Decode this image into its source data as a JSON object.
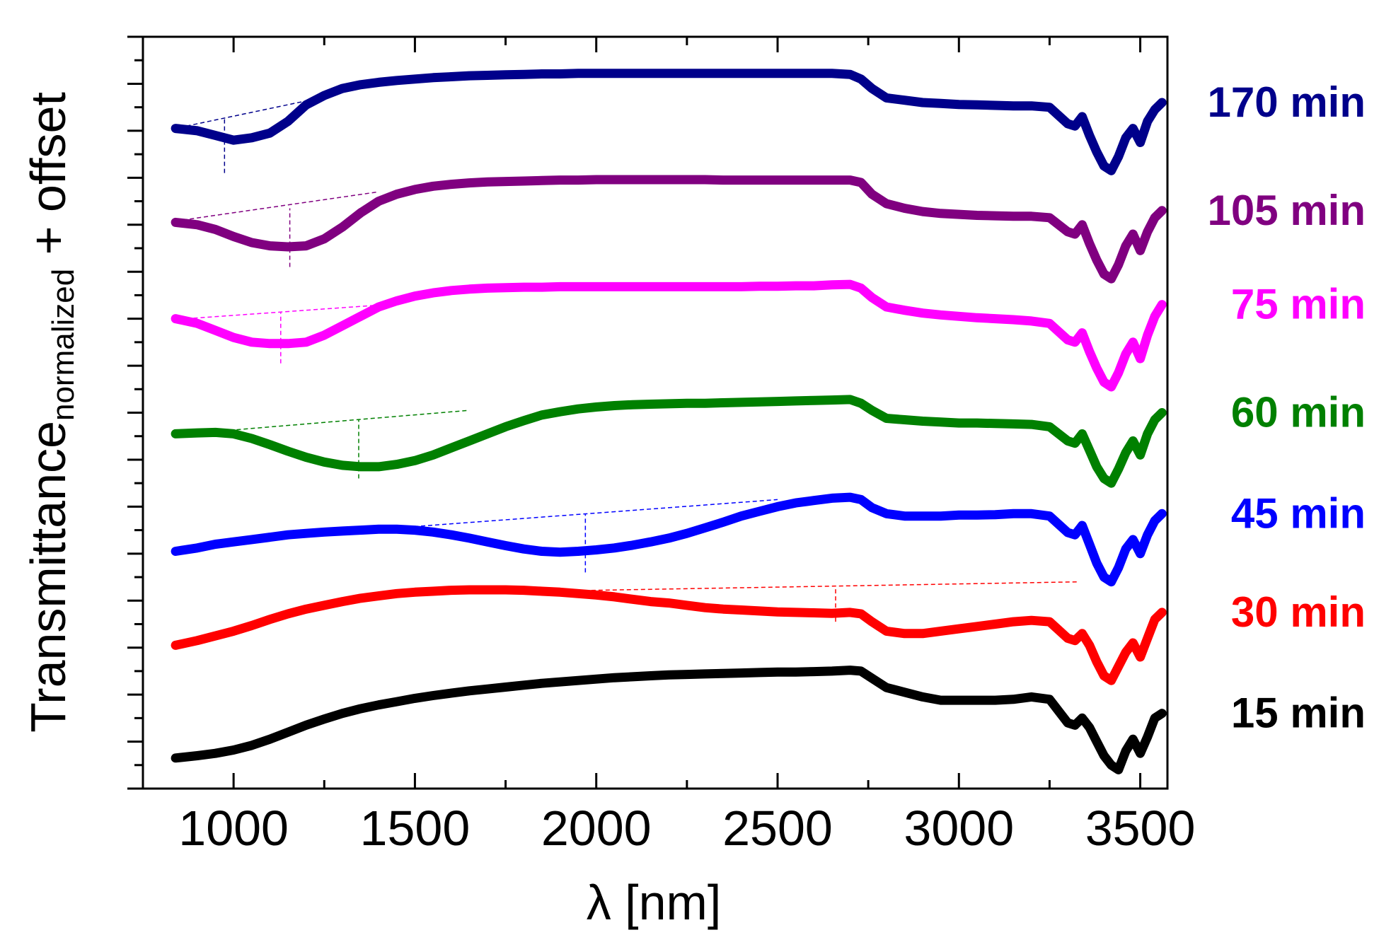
{
  "chart_data": {
    "type": "line",
    "title": "",
    "xlabel": "λ [nm]",
    "ylabel_main": "Transmittance",
    "ylabel_sub": "normalized",
    "ylabel_suffix": " + offset",
    "xlim": [
      750,
      3575
    ],
    "ylim": [
      0,
      16
    ],
    "xticks": [
      1000,
      1500,
      2000,
      2500,
      3000,
      3500
    ],
    "xtick_labels": [
      "1000",
      "1500",
      "2000",
      "2500",
      "3000",
      "3500"
    ],
    "grid": false,
    "x": [
      840,
      900,
      950,
      1000,
      1050,
      1100,
      1150,
      1200,
      1250,
      1300,
      1350,
      1400,
      1450,
      1500,
      1550,
      1600,
      1650,
      1700,
      1750,
      1800,
      1850,
      1900,
      1950,
      2000,
      2050,
      2100,
      2150,
      2200,
      2250,
      2300,
      2350,
      2400,
      2450,
      2500,
      2550,
      2600,
      2650,
      2700,
      2730,
      2760,
      2800,
      2850,
      2900,
      2950,
      3000,
      3050,
      3100,
      3150,
      3200,
      3250,
      3300,
      3320,
      3340,
      3360,
      3380,
      3400,
      3420,
      3440,
      3460,
      3480,
      3500,
      3520,
      3540,
      3560
    ],
    "series": [
      {
        "name": "15 min",
        "color": "#000000",
        "values": [
          0.65,
          0.7,
          0.75,
          0.82,
          0.92,
          1.05,
          1.2,
          1.35,
          1.48,
          1.6,
          1.7,
          1.78,
          1.85,
          1.92,
          1.98,
          2.03,
          2.08,
          2.12,
          2.16,
          2.2,
          2.24,
          2.27,
          2.3,
          2.33,
          2.36,
          2.38,
          2.4,
          2.42,
          2.43,
          2.44,
          2.45,
          2.46,
          2.47,
          2.48,
          2.48,
          2.49,
          2.5,
          2.52,
          2.5,
          2.35,
          2.15,
          2.05,
          1.95,
          1.88,
          1.88,
          1.88,
          1.88,
          1.9,
          1.95,
          1.9,
          1.4,
          1.35,
          1.5,
          1.3,
          1.0,
          0.7,
          0.5,
          0.4,
          0.8,
          1.05,
          0.75,
          1.1,
          1.5,
          1.6
        ]
      },
      {
        "name": "30 min",
        "color": "#ff0000",
        "values": [
          3.05,
          3.15,
          3.25,
          3.35,
          3.47,
          3.6,
          3.72,
          3.82,
          3.9,
          3.98,
          4.05,
          4.1,
          4.15,
          4.18,
          4.2,
          4.22,
          4.23,
          4.23,
          4.23,
          4.22,
          4.2,
          4.18,
          4.15,
          4.12,
          4.08,
          4.03,
          3.98,
          3.95,
          3.9,
          3.85,
          3.82,
          3.8,
          3.78,
          3.76,
          3.75,
          3.74,
          3.73,
          3.75,
          3.72,
          3.55,
          3.35,
          3.3,
          3.3,
          3.35,
          3.4,
          3.45,
          3.5,
          3.55,
          3.58,
          3.55,
          3.2,
          3.15,
          3.3,
          3.05,
          2.7,
          2.4,
          2.3,
          2.6,
          2.9,
          3.1,
          2.8,
          3.2,
          3.6,
          3.75
        ]
      },
      {
        "name": "45 min",
        "color": "#0000ff",
        "values": [
          5.05,
          5.12,
          5.2,
          5.25,
          5.3,
          5.35,
          5.4,
          5.43,
          5.46,
          5.48,
          5.5,
          5.52,
          5.52,
          5.5,
          5.46,
          5.4,
          5.33,
          5.25,
          5.17,
          5.1,
          5.05,
          5.03,
          5.05,
          5.08,
          5.12,
          5.18,
          5.25,
          5.33,
          5.43,
          5.55,
          5.67,
          5.8,
          5.9,
          6.0,
          6.08,
          6.13,
          6.18,
          6.2,
          6.15,
          5.98,
          5.85,
          5.8,
          5.8,
          5.8,
          5.82,
          5.82,
          5.83,
          5.85,
          5.85,
          5.8,
          5.45,
          5.4,
          5.6,
          5.2,
          4.8,
          4.5,
          4.4,
          4.7,
          5.1,
          5.3,
          5.0,
          5.4,
          5.7,
          5.85
        ]
      },
      {
        "name": "60 min",
        "color": "#008000",
        "values": [
          7.55,
          7.57,
          7.58,
          7.55,
          7.45,
          7.32,
          7.18,
          7.05,
          6.95,
          6.88,
          6.85,
          6.85,
          6.9,
          6.98,
          7.1,
          7.25,
          7.4,
          7.55,
          7.7,
          7.83,
          7.95,
          8.02,
          8.08,
          8.12,
          8.15,
          8.17,
          8.18,
          8.19,
          8.2,
          8.2,
          8.21,
          8.22,
          8.23,
          8.24,
          8.25,
          8.26,
          8.27,
          8.28,
          8.2,
          8.05,
          7.88,
          7.85,
          7.82,
          7.8,
          7.78,
          7.78,
          7.77,
          7.76,
          7.75,
          7.7,
          7.4,
          7.35,
          7.55,
          7.2,
          6.85,
          6.6,
          6.5,
          6.8,
          7.15,
          7.4,
          7.1,
          7.55,
          7.85,
          8.0
        ]
      },
      {
        "name": "75 min",
        "color": "#ff00ff",
        "values": [
          10.0,
          9.9,
          9.75,
          9.6,
          9.5,
          9.47,
          9.47,
          9.5,
          9.65,
          9.85,
          10.05,
          10.25,
          10.38,
          10.48,
          10.55,
          10.6,
          10.63,
          10.65,
          10.66,
          10.67,
          10.67,
          10.68,
          10.68,
          10.68,
          10.68,
          10.68,
          10.68,
          10.68,
          10.68,
          10.68,
          10.68,
          10.68,
          10.69,
          10.69,
          10.7,
          10.7,
          10.72,
          10.73,
          10.65,
          10.45,
          10.25,
          10.18,
          10.12,
          10.08,
          10.05,
          10.02,
          10.0,
          9.98,
          9.95,
          9.9,
          9.55,
          9.5,
          9.7,
          9.3,
          8.95,
          8.65,
          8.55,
          8.85,
          9.25,
          9.5,
          9.15,
          9.65,
          10.05,
          10.3
        ]
      },
      {
        "name": "105 min",
        "color": "#800080",
        "values": [
          12.05,
          12.0,
          11.9,
          11.75,
          11.62,
          11.55,
          11.53,
          11.55,
          11.7,
          11.95,
          12.25,
          12.5,
          12.65,
          12.75,
          12.82,
          12.86,
          12.89,
          12.91,
          12.92,
          12.93,
          12.94,
          12.95,
          12.95,
          12.96,
          12.96,
          12.96,
          12.96,
          12.96,
          12.96,
          12.96,
          12.95,
          12.95,
          12.95,
          12.95,
          12.95,
          12.95,
          12.95,
          12.95,
          12.9,
          12.65,
          12.45,
          12.35,
          12.28,
          12.24,
          12.22,
          12.2,
          12.19,
          12.18,
          12.18,
          12.15,
          11.85,
          11.8,
          12.0,
          11.6,
          11.25,
          10.95,
          10.85,
          11.15,
          11.55,
          11.8,
          11.45,
          11.85,
          12.15,
          12.3
        ]
      },
      {
        "name": "170 min",
        "color": "#00008b",
        "values": [
          14.05,
          14.0,
          13.9,
          13.8,
          13.85,
          13.95,
          14.2,
          14.55,
          14.75,
          14.9,
          14.98,
          15.03,
          15.07,
          15.1,
          15.13,
          15.15,
          15.17,
          15.18,
          15.19,
          15.2,
          15.21,
          15.21,
          15.22,
          15.22,
          15.22,
          15.22,
          15.22,
          15.22,
          15.22,
          15.22,
          15.22,
          15.22,
          15.22,
          15.22,
          15.22,
          15.22,
          15.22,
          15.2,
          15.1,
          14.9,
          14.7,
          14.65,
          14.6,
          14.58,
          14.56,
          14.55,
          14.54,
          14.53,
          14.53,
          14.5,
          14.15,
          14.1,
          14.3,
          13.9,
          13.55,
          13.25,
          13.15,
          13.45,
          13.85,
          14.05,
          13.75,
          14.2,
          14.45,
          14.6
        ]
      }
    ],
    "dashed_annotations": [
      {
        "series": "170 min",
        "from": [
          870,
          14.1
        ],
        "to": [
          1240,
          14.7
        ],
        "marker_x": 975,
        "marker_range": [
          13.1,
          14.3
        ]
      },
      {
        "series": "105 min",
        "from": [
          860,
          12.1
        ],
        "to": [
          1400,
          12.7
        ],
        "marker_x": 1155,
        "marker_range": [
          11.1,
          12.35
        ]
      },
      {
        "series": "75 min",
        "from": [
          870,
          10.0
        ],
        "to": [
          1420,
          10.3
        ],
        "marker_x": 1130,
        "marker_range": [
          9.05,
          10.15
        ]
      },
      {
        "series": "60 min",
        "from": [
          950,
          7.6
        ],
        "to": [
          1650,
          8.05
        ],
        "marker_x": 1345,
        "marker_range": [
          6.6,
          7.85
        ]
      },
      {
        "series": "45 min",
        "from": [
          1400,
          5.52
        ],
        "to": [
          2500,
          6.15
        ],
        "marker_x": 1970,
        "marker_range": [
          4.6,
          5.85
        ]
      },
      {
        "series": "30 min",
        "from": [
          1850,
          4.2
        ],
        "to": [
          3330,
          4.4
        ],
        "marker_x": 2660,
        "marker_range": [
          3.55,
          4.3
        ]
      }
    ],
    "series_labels": [
      "15 min",
      "30 min",
      "45 min",
      "60 min",
      "75 min",
      "105 min",
      "170 min"
    ]
  }
}
